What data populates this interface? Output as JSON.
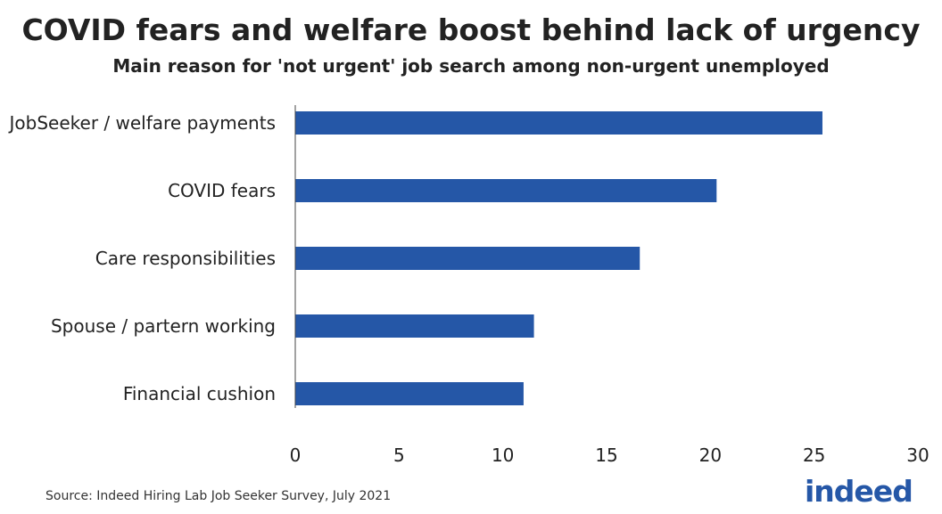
{
  "title": "COVID fears and welfare boost behind lack of urgency",
  "subtitle": "Main reason for 'not urgent' job search among non-urgent unemployed",
  "source": "Source: Indeed Hiring Lab Job Seeker Survey, July 2021",
  "logo_text": "indeed",
  "colors": {
    "bar": "#2557a7",
    "axis": "#444444",
    "logo": "#2557a7"
  },
  "chart_data": {
    "type": "bar",
    "orientation": "horizontal",
    "title": "COVID fears and welfare boost behind lack of urgency",
    "subtitle": "Main reason for 'not urgent' job search among non-urgent unemployed",
    "categories": [
      "JobSeeker / welfare payments",
      "COVID fears",
      "Care responsibilities",
      "Spouse / partern working",
      "Financial cushion"
    ],
    "values": [
      25.4,
      20.3,
      16.6,
      11.5,
      11.0
    ],
    "xlabel": "",
    "ylabel": "",
    "xlim": [
      0,
      30
    ],
    "xticks": [
      "0",
      "5",
      "10",
      "15",
      "20",
      "25",
      "30"
    ],
    "grid": false
  }
}
